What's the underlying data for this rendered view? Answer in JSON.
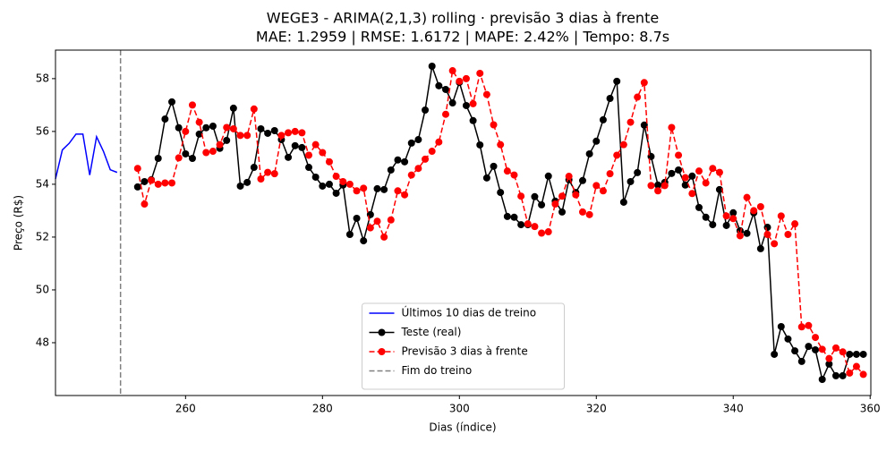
{
  "chart_data": {
    "type": "line",
    "title": "WEGE3 - ARIMA(2,1,3) rolling · previsão 3 dias à frente",
    "subtitle": "MAE: 1.2959 | RMSE: 1.6172 | MAPE: 2.42% | Tempo: 8.7s",
    "x_label": "Dias (índice)",
    "y_label": "Preço (R$)",
    "xlim": [
      241,
      360.1
    ],
    "ylim": [
      46,
      59.08
    ],
    "xticks": [
      260,
      280,
      300,
      320,
      340,
      360
    ],
    "yticks": [
      48,
      50,
      52,
      54,
      56,
      58
    ],
    "legend": "lower center",
    "series": [
      {
        "name": "Últimos 10 dias de treino",
        "color": "#0000ff",
        "style": "solid",
        "marker": false,
        "x": [
          241,
          242,
          243,
          244,
          245,
          246,
          247,
          248,
          249,
          250
        ],
        "values": [
          54.2,
          55.3,
          55.55,
          55.9,
          55.9,
          54.35,
          55.8,
          55.25,
          54.55,
          54.45
        ]
      },
      {
        "name": "Teste (real)",
        "color": "#000000",
        "style": "solid",
        "marker": true,
        "x": [
          253,
          254,
          255,
          256,
          257,
          258,
          259,
          260,
          261,
          262,
          263,
          264,
          265,
          266,
          267,
          268,
          269,
          270,
          271,
          272,
          273,
          274,
          275,
          276,
          277,
          278,
          279,
          280,
          281,
          282,
          283,
          284,
          285,
          286,
          287,
          288,
          289,
          290,
          291,
          292,
          293,
          294,
          295,
          296,
          297,
          298,
          299,
          300,
          301,
          302,
          303,
          304,
          305,
          306,
          307,
          308,
          309,
          310,
          311,
          312,
          313,
          314,
          315,
          316,
          317,
          318,
          319,
          320,
          321,
          322,
          323,
          324,
          325,
          326,
          327,
          328,
          329,
          330,
          331,
          332,
          333,
          334,
          335,
          336,
          337,
          338,
          339,
          340,
          341,
          342,
          343,
          344,
          345,
          346,
          347,
          348,
          349,
          350,
          351,
          352,
          353,
          354,
          355,
          356,
          357,
          358,
          359
        ],
        "values": [
          53.9,
          54.1,
          54.17,
          54.98,
          56.47,
          57.12,
          56.14,
          55.15,
          54.98,
          55.9,
          56.14,
          56.2,
          55.36,
          55.66,
          56.88,
          53.93,
          54.07,
          54.64,
          56.1,
          55.93,
          56.03,
          55.69,
          55.02,
          55.46,
          55.39,
          54.64,
          54.27,
          53.93,
          54.0,
          53.66,
          53.97,
          52.1,
          52.71,
          51.86,
          52.85,
          53.83,
          53.8,
          54.54,
          54.92,
          54.85,
          55.56,
          55.69,
          56.81,
          58.47,
          57.73,
          57.59,
          57.08,
          57.86,
          56.98,
          56.41,
          55.49,
          54.24,
          54.68,
          53.69,
          52.78,
          52.75,
          52.47,
          52.47,
          53.53,
          53.22,
          54.31,
          53.36,
          52.95,
          54.17,
          53.69,
          54.14,
          55.15,
          55.63,
          56.44,
          57.25,
          57.9,
          53.32,
          54.1,
          54.44,
          56.24,
          55.05,
          53.97,
          54.07,
          54.41,
          54.54,
          53.97,
          54.31,
          53.12,
          52.75,
          52.47,
          53.8,
          52.44,
          52.92,
          52.24,
          52.14,
          52.92,
          51.56,
          52.37,
          47.56,
          48.61,
          48.14,
          47.69,
          47.29,
          47.86,
          47.73,
          46.61,
          47.19,
          46.75,
          46.75,
          47.56,
          47.56,
          47.56
        ]
      },
      {
        "name": "Previsão 3 dias à frente",
        "color": "#ff0000",
        "style": "dashed",
        "marker": true,
        "x": [
          253,
          254,
          255,
          256,
          257,
          258,
          259,
          260,
          261,
          262,
          263,
          264,
          265,
          266,
          267,
          268,
          269,
          270,
          271,
          272,
          273,
          274,
          275,
          276,
          277,
          278,
          279,
          280,
          281,
          282,
          283,
          284,
          285,
          286,
          287,
          288,
          289,
          290,
          291,
          292,
          293,
          294,
          295,
          296,
          297,
          298,
          299,
          300,
          301,
          302,
          303,
          304,
          305,
          306,
          307,
          308,
          309,
          310,
          311,
          312,
          313,
          314,
          315,
          316,
          317,
          318,
          319,
          320,
          321,
          322,
          323,
          324,
          325,
          326,
          327,
          328,
          329,
          330,
          331,
          332,
          333,
          334,
          335,
          336,
          337,
          338,
          339,
          340,
          341,
          342,
          343,
          344,
          345,
          346,
          347,
          348,
          349,
          350,
          351,
          352,
          353,
          354,
          355,
          356,
          357,
          358,
          359
        ],
        "values": [
          54.6,
          53.25,
          54.15,
          54.0,
          54.05,
          54.05,
          55.0,
          56.0,
          57.0,
          56.35,
          55.2,
          55.25,
          55.5,
          56.15,
          56.1,
          55.85,
          55.85,
          56.85,
          54.2,
          54.45,
          54.4,
          55.85,
          55.95,
          56.0,
          55.95,
          55.1,
          55.5,
          55.2,
          54.85,
          54.3,
          54.1,
          54.0,
          53.75,
          53.85,
          52.35,
          52.6,
          52.0,
          52.65,
          53.75,
          53.6,
          54.35,
          54.6,
          54.95,
          55.25,
          55.6,
          56.65,
          58.3,
          57.9,
          58.0,
          57.05,
          58.2,
          57.4,
          56.25,
          55.5,
          54.5,
          54.35,
          53.55,
          52.5,
          52.4,
          52.15,
          52.2,
          53.25,
          53.55,
          54.3,
          53.6,
          52.95,
          52.85,
          53.95,
          53.75,
          54.4,
          55.1,
          55.5,
          56.35,
          57.3,
          57.85,
          53.95,
          53.75,
          53.95,
          56.15,
          55.1,
          54.25,
          53.65,
          54.5,
          54.05,
          54.6,
          54.45,
          52.8,
          52.7,
          52.05,
          53.5,
          53.0,
          53.15,
          52.1,
          51.75,
          52.8,
          52.1,
          52.5,
          48.6,
          48.65,
          48.2,
          47.75,
          47.4,
          47.8,
          47.65,
          46.85,
          47.1,
          46.8
        ]
      }
    ],
    "vline": {
      "name": "Fim do treino",
      "x": 250.5,
      "color": "#808080"
    }
  }
}
